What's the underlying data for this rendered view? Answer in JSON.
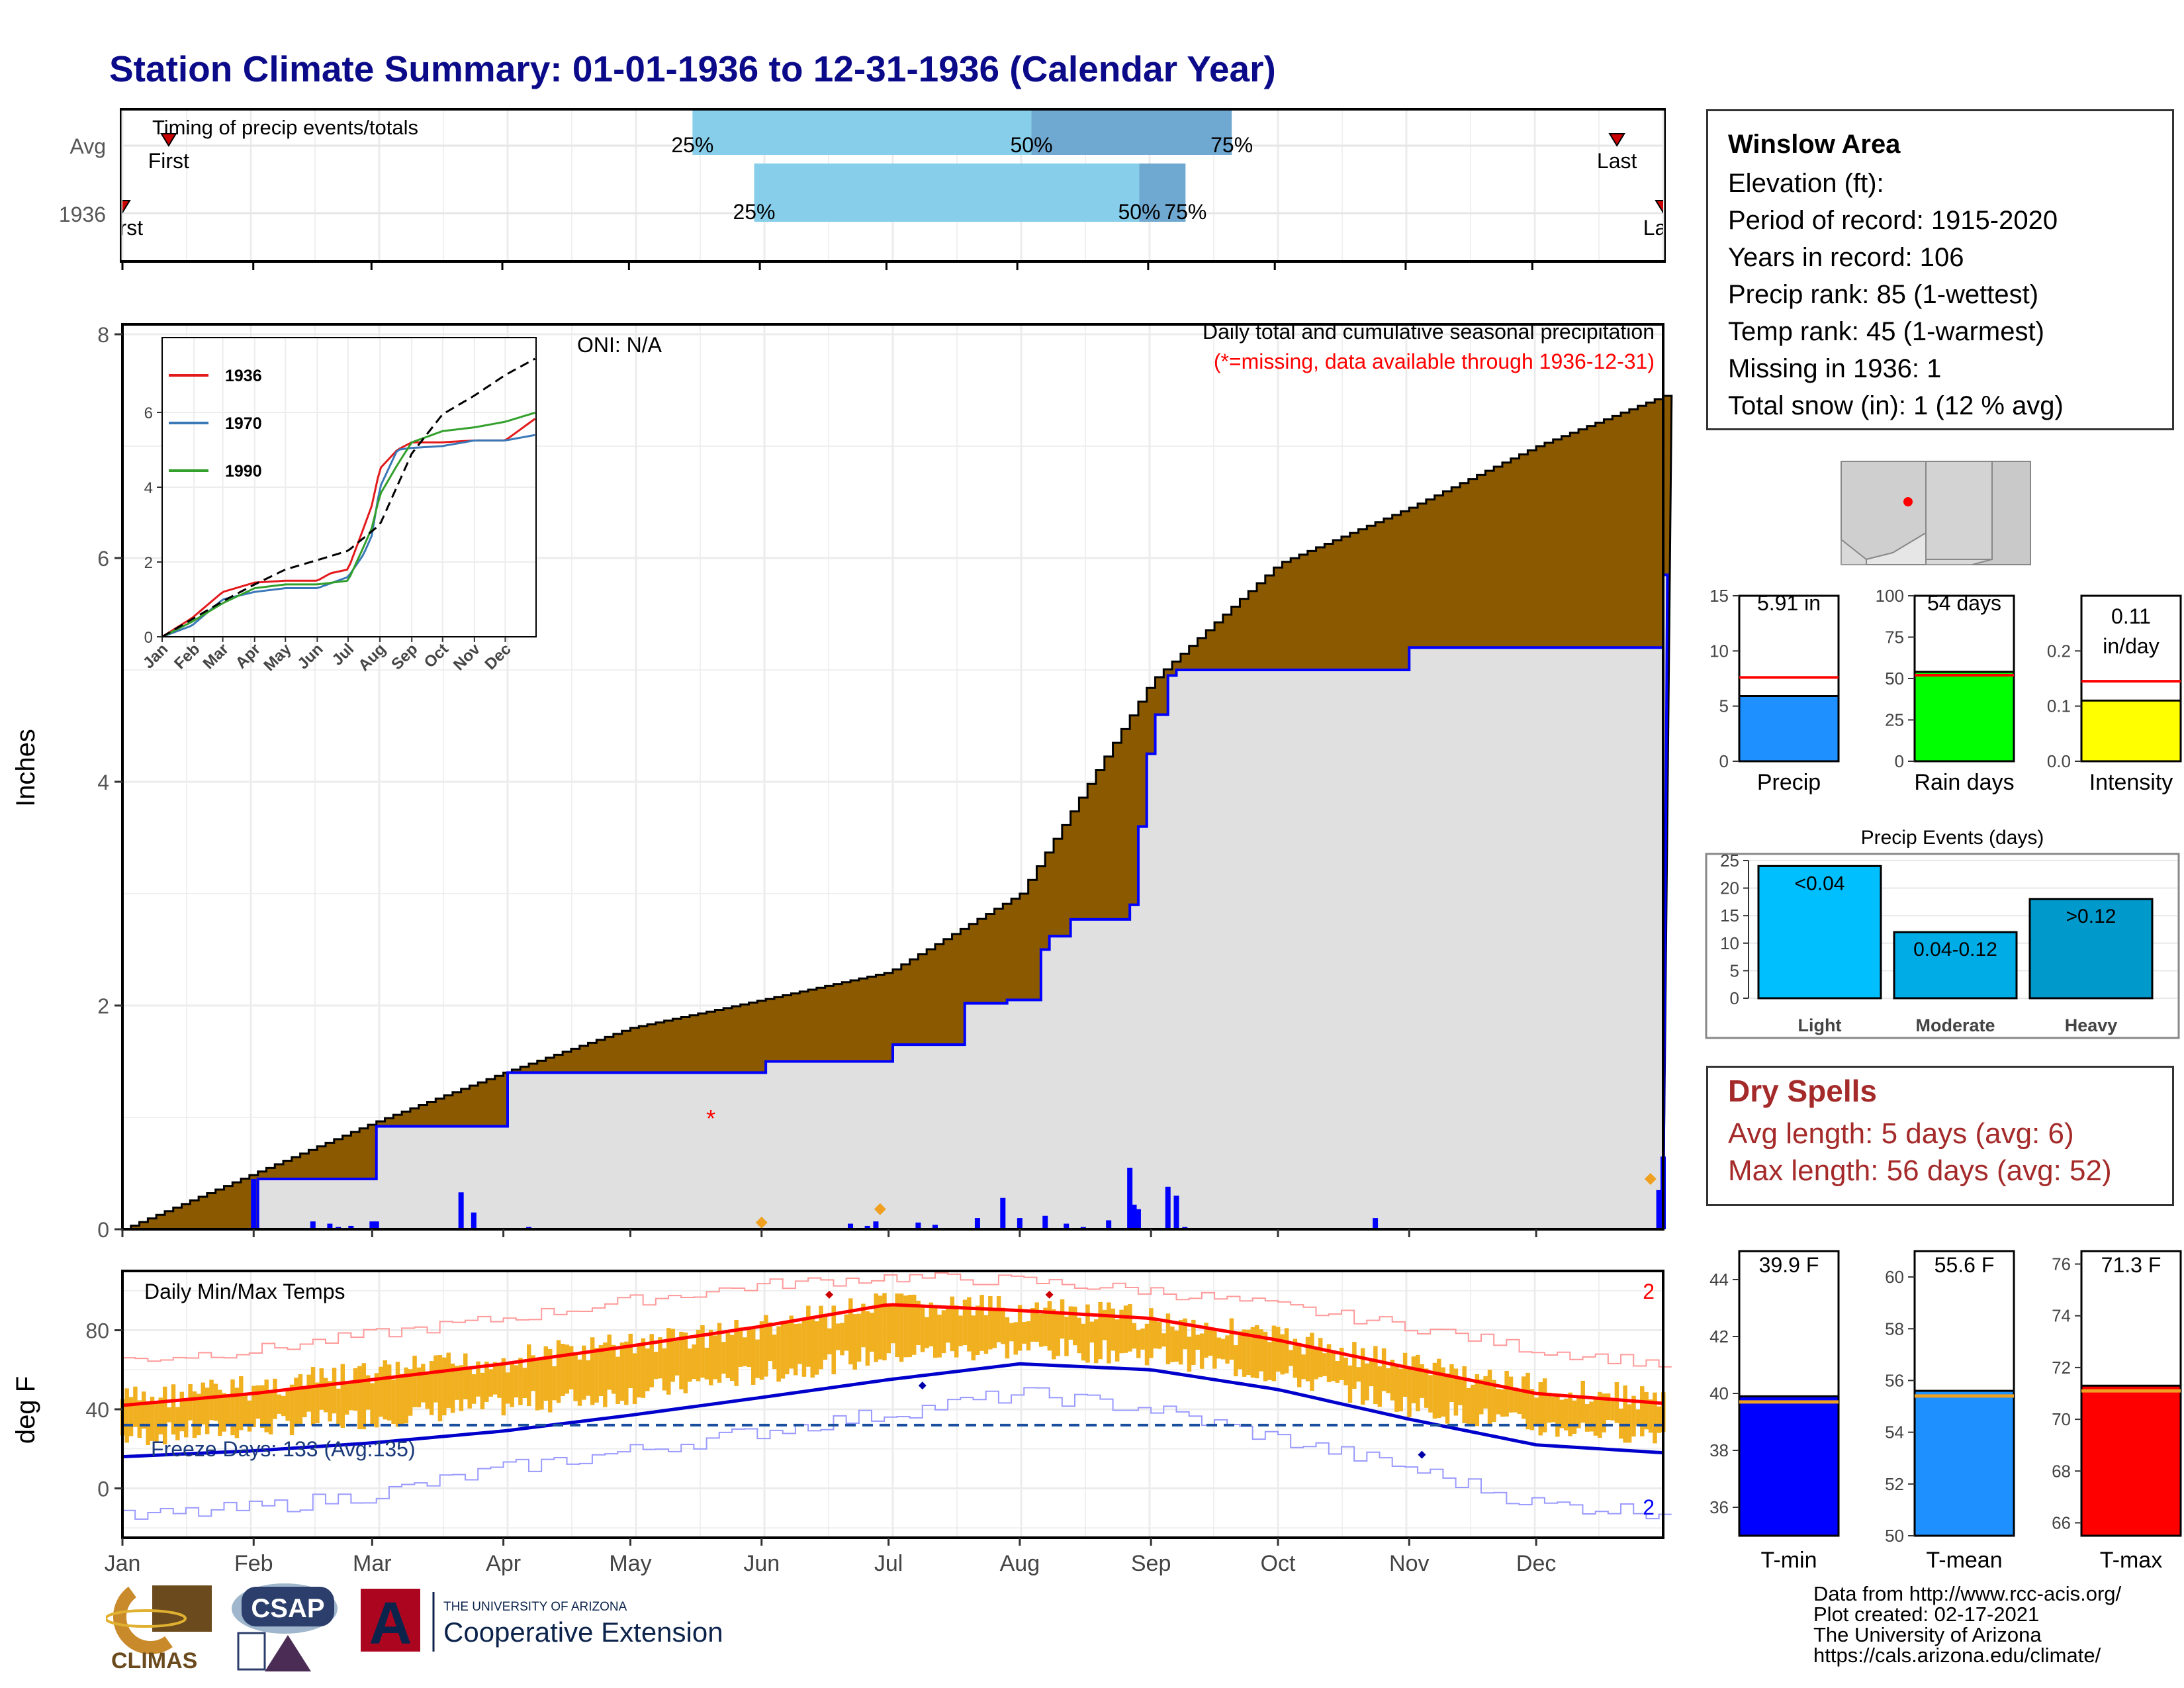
{
  "title": "Station Climate Summary: 01-01-1936 to 12-31-1936 (Calendar Year)",
  "colors": {
    "title": "#0b0b8a",
    "precip_fill": "#8b5a00",
    "current_line": "#0000ff",
    "bar_blue": "#0000ff",
    "temp_bar": "#f0b020",
    "max_line": "#ff0000",
    "min_line": "#0000cc"
  },
  "timing": {
    "label": "Timing of precip events/totals",
    "rows": [
      {
        "name": "Avg",
        "p25": 0.37,
        "p50": 0.59,
        "p75": 0.72,
        "first": 0.03,
        "last": 0.97,
        "first_label": "First",
        "last_label": "Last",
        "p25_label": "25%",
        "p50_label": "50%",
        "p75_label": "75%"
      },
      {
        "name": "1936",
        "p25": 0.41,
        "p50": 0.66,
        "p75": 0.69,
        "first": 0.0,
        "last": 1.0,
        "first_label": "First",
        "last_label": "Last",
        "p25_label": "25%",
        "p50_label": "50%",
        "p75_label": "75%"
      }
    ]
  },
  "precip_panel": {
    "ylabel": "Inches",
    "header": "Daily total and cumulative seasonal precipitation",
    "subheader": "(*=missing, data available through 1936-12-31)",
    "oni": "ONI: N/A",
    "yticks": [
      "0",
      "2",
      "4",
      "6",
      "8"
    ]
  },
  "chart_data": [
    {
      "type": "area",
      "name": "cumulative_precip",
      "title": "Daily total and cumulative seasonal precipitation",
      "ylabel": "Inches",
      "ylim": [
        0,
        8
      ],
      "x_unit": "day of year",
      "avg_cumulative": {
        "x": [
          1,
          32,
          60,
          91,
          121,
          152,
          182,
          213,
          244,
          274,
          305,
          335,
          365
        ],
        "y": [
          0.0,
          0.5,
          0.95,
          1.4,
          1.8,
          2.05,
          2.3,
          3.0,
          4.9,
          5.95,
          6.45,
          7.0,
          7.45
        ]
      },
      "cumulative_1936": {
        "x": [
          1,
          32,
          33,
          60,
          61,
          91,
          92,
          152,
          153,
          182,
          183,
          190,
          200,
          210,
          218,
          220,
          225,
          239,
          241,
          243,
          245,
          248,
          250,
          280,
          305,
          335,
          364,
          365
        ],
        "y": [
          0.0,
          0.0,
          0.45,
          0.45,
          0.92,
          0.92,
          1.4,
          1.4,
          1.5,
          1.5,
          1.65,
          1.65,
          2.02,
          2.05,
          2.5,
          2.62,
          2.77,
          2.9,
          3.6,
          4.25,
          4.6,
          4.95,
          5.0,
          5.0,
          5.2,
          5.2,
          5.2,
          5.85
        ]
      },
      "daily_precip_events": [
        {
          "x": 32,
          "y": 0.45
        },
        {
          "x": 46,
          "y": 0.07
        },
        {
          "x": 50,
          "y": 0.05
        },
        {
          "x": 52,
          "y": 0.02
        },
        {
          "x": 55,
          "y": 0.03
        },
        {
          "x": 60,
          "y": 0.07
        },
        {
          "x": 61,
          "y": 0.07
        },
        {
          "x": 81,
          "y": 0.33
        },
        {
          "x": 84,
          "y": 0.15
        },
        {
          "x": 97,
          "y": 0.02
        },
        {
          "x": 173,
          "y": 0.05
        },
        {
          "x": 177,
          "y": 0.03
        },
        {
          "x": 179,
          "y": 0.07
        },
        {
          "x": 189,
          "y": 0.06
        },
        {
          "x": 193,
          "y": 0.04
        },
        {
          "x": 203,
          "y": 0.1
        },
        {
          "x": 209,
          "y": 0.28
        },
        {
          "x": 213,
          "y": 0.1
        },
        {
          "x": 219,
          "y": 0.12
        },
        {
          "x": 224,
          "y": 0.05
        },
        {
          "x": 228,
          "y": 0.02
        },
        {
          "x": 234,
          "y": 0.08
        },
        {
          "x": 239,
          "y": 0.55
        },
        {
          "x": 240,
          "y": 0.22
        },
        {
          "x": 241,
          "y": 0.18
        },
        {
          "x": 248,
          "y": 0.38
        },
        {
          "x": 250,
          "y": 0.3
        },
        {
          "x": 252,
          "y": 0.02
        },
        {
          "x": 297,
          "y": 0.1
        },
        {
          "x": 364,
          "y": 0.35
        },
        {
          "x": 365,
          "y": 0.65
        }
      ],
      "missing_marker": {
        "x": 140,
        "y": 1.0
      },
      "orange_markers": [
        {
          "x": 152,
          "y": 0.06
        },
        {
          "x": 180,
          "y": 0.18
        },
        {
          "x": 362,
          "y": 0.45
        }
      ],
      "inset": {
        "type": "line",
        "ylim": [
          0,
          8
        ],
        "xticks": [
          "Jan",
          "Feb",
          "Mar",
          "Apr",
          "May",
          "Jun",
          "Jul",
          "Aug",
          "Sep",
          "Oct",
          "Nov",
          "Dec"
        ],
        "yticks": [
          "0",
          "2",
          "4",
          "6"
        ],
        "series": [
          {
            "name": "1936",
            "color": "#e31a1c",
            "x": [
              1,
              30,
              60,
              91,
              121,
              152,
              165,
              182,
              197,
              205,
              213,
              230,
              244,
              274,
              305,
              335,
              365
            ],
            "y": [
              0,
              0.5,
              1.2,
              1.45,
              1.5,
              1.5,
              1.7,
              1.8,
              2.9,
              3.5,
              4.5,
              5.0,
              5.2,
              5.2,
              5.25,
              5.25,
              5.85
            ]
          },
          {
            "name": "1970",
            "color": "#3a78b8",
            "x": [
              1,
              30,
              60,
              91,
              121,
              152,
              182,
              197,
              205,
              213,
              230,
              244,
              274,
              305,
              335,
              365
            ],
            "y": [
              0,
              0.3,
              1.0,
              1.2,
              1.3,
              1.3,
              1.6,
              2.2,
              2.7,
              4.0,
              5.0,
              5.05,
              5.1,
              5.25,
              5.25,
              5.4
            ]
          },
          {
            "name": "1990",
            "color": "#33a02c",
            "x": [
              1,
              30,
              60,
              91,
              121,
              152,
              182,
              197,
              205,
              213,
              230,
              244,
              274,
              305,
              335,
              365
            ],
            "y": [
              0,
              0.4,
              0.9,
              1.3,
              1.4,
              1.4,
              1.5,
              2.4,
              2.9,
              3.8,
              4.6,
              5.2,
              5.5,
              5.6,
              5.75,
              6.0
            ]
          },
          {
            "name": "avg",
            "color": "#000000",
            "dashed": true,
            "x": [
              1,
              32,
              60,
              91,
              121,
              152,
              182,
              213,
              244,
              274,
              305,
              335,
              365
            ],
            "y": [
              0,
              0.5,
              0.95,
              1.4,
              1.8,
              2.05,
              2.3,
              3.0,
              4.9,
              5.95,
              6.45,
              7.0,
              7.45
            ]
          }
        ]
      }
    },
    {
      "type": "area",
      "name": "daily_temps",
      "title": "Daily Min/Max Temps",
      "ylabel": "deg F",
      "ylim": [
        -25,
        110
      ],
      "yticks": [
        "0",
        "40",
        "80"
      ],
      "freeze_line": 32,
      "freeze_label": "Freeze Days: 133 (Avg:135)",
      "record_high_count": "2",
      "record_low_count": "2",
      "avg_max": {
        "x": [
          1,
          32,
          60,
          91,
          121,
          152,
          182,
          213,
          244,
          274,
          305,
          335,
          365
        ],
        "y": [
          42,
          48,
          55,
          63,
          72,
          82,
          93,
          90,
          86,
          75,
          61,
          48,
          43
        ]
      },
      "avg_min": {
        "x": [
          1,
          32,
          60,
          91,
          121,
          152,
          182,
          213,
          244,
          274,
          305,
          335,
          365
        ],
        "y": [
          16,
          19,
          23,
          29,
          37,
          46,
          55,
          63,
          60,
          50,
          35,
          22,
          18
        ]
      },
      "record_max": {
        "x": [
          1,
          32,
          60,
          91,
          121,
          152,
          182,
          213,
          244,
          274,
          305,
          335,
          365
        ],
        "y": [
          65,
          70,
          78,
          86,
          95,
          103,
          107,
          105,
          100,
          92,
          82,
          70,
          63
        ]
      },
      "record_min": {
        "x": [
          1,
          32,
          60,
          91,
          121,
          152,
          182,
          213,
          244,
          274,
          305,
          335,
          365
        ],
        "y": [
          -15,
          -10,
          -3,
          10,
          19,
          29,
          38,
          48,
          40,
          25,
          10,
          -8,
          -12
        ]
      },
      "obs_max_envelope": {
        "x": [
          1,
          32,
          60,
          91,
          121,
          152,
          182,
          213,
          244,
          274,
          305,
          335,
          365
        ],
        "y": [
          52,
          58,
          65,
          72,
          80,
          88,
          100,
          97,
          93,
          83,
          70,
          58,
          52
        ]
      },
      "obs_min_envelope": {
        "x": [
          1,
          32,
          60,
          91,
          121,
          152,
          182,
          213,
          244,
          274,
          305,
          335,
          365
        ],
        "y": [
          20,
          25,
          30,
          36,
          42,
          52,
          62,
          65,
          62,
          52,
          36,
          25,
          22
        ]
      }
    }
  ],
  "month_labels": [
    "Jan",
    "Feb",
    "Mar",
    "Apr",
    "May",
    "Jun",
    "Jul",
    "Aug",
    "Sep",
    "Oct",
    "Nov",
    "Dec"
  ],
  "station": {
    "name": "Winslow Area",
    "elevation": "Elevation (ft):",
    "period": "Period of record: 1915-2020",
    "years": "Years in record: 106",
    "precip_rank": "Precip rank: 85 (1-wettest)",
    "temp_rank": "Temp rank: 45 (1-warmest)",
    "missing": "Missing in 1936: 1",
    "snow": "Total snow (in): 1 (12 % avg)"
  },
  "gauges": [
    {
      "name": "Precip",
      "label": "5.91 in",
      "ymax": 15,
      "value": 5.91,
      "avg": 7.6,
      "color": "#1e90ff",
      "yticks": [
        "0",
        "5",
        "10",
        "15"
      ]
    },
    {
      "name": "Rain days",
      "label": "54 days",
      "ymax": 100,
      "value": 54,
      "avg": 52,
      "color": "#00ff00",
      "yticks": [
        "0",
        "25",
        "50",
        "75",
        "100"
      ]
    },
    {
      "name": "Intensity",
      "label": "0.11\nin/day",
      "label1": "0.11",
      "label2": "in/day",
      "ymax": 0.3,
      "value": 0.11,
      "avg": 0.145,
      "color": "#ffff00",
      "yticks": [
        "0.0",
        "0.1",
        "0.2"
      ]
    }
  ],
  "precip_events": {
    "title": "Precip Events (days)",
    "categories": [
      "Light",
      "Moderate",
      "Heavy"
    ],
    "labels": [
      "<0.04",
      "0.04-0.12",
      ">0.12"
    ],
    "values": [
      24,
      12,
      18
    ],
    "colors": [
      "#00bfff",
      "#00ace6",
      "#0099cc"
    ],
    "yticks": [
      "0",
      "5",
      "10",
      "15",
      "20",
      "25"
    ]
  },
  "dry_spells": {
    "title": "Dry Spells",
    "avg": "Avg length: 5 days (avg: 6)",
    "max": "Max length: 56 days (avg: 52)"
  },
  "temp_gauges": [
    {
      "name": "T-min",
      "label": "39.9 F",
      "ymin": 35,
      "ymax": 45,
      "value": 39.9,
      "avg": 39.7,
      "color": "#0000ff",
      "yticks": [
        "36",
        "38",
        "40",
        "42",
        "44"
      ]
    },
    {
      "name": "T-mean",
      "label": "55.6 F",
      "ymin": 50,
      "ymax": 61,
      "value": 55.6,
      "avg": 55.4,
      "color": "#1e90ff",
      "yticks": [
        "50",
        "52",
        "54",
        "56",
        "58",
        "60"
      ]
    },
    {
      "name": "T-max",
      "label": "71.3 F",
      "ymin": 65.5,
      "ymax": 76.5,
      "value": 71.3,
      "avg": 71.1,
      "color": "#ff0000",
      "yticks": [
        "66",
        "68",
        "70",
        "72",
        "74",
        "76"
      ]
    }
  ],
  "credits": {
    "l1": "Data from http://www.rcc-acis.org/",
    "l2": "Plot created: 02-17-2021",
    "l3": "The University of Arizona",
    "l4": "https://cals.arizona.edu/climate/"
  },
  "logos": {
    "climas": "CLIMAS",
    "csap": "CSAP",
    "ua_small": "THE UNIVERSITY OF ARIZONA",
    "ua_big": "Cooperative Extension",
    "ua_letter": "A"
  }
}
